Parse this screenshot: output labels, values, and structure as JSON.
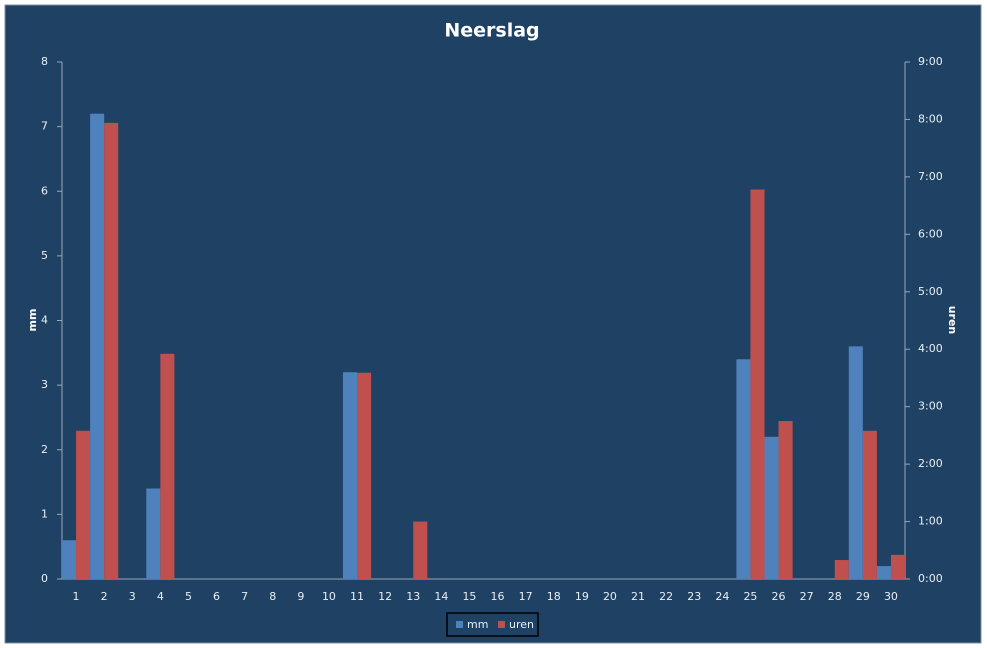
{
  "chart_data": {
    "type": "bar",
    "title": "Neerslag",
    "y_label": "mm",
    "y2_label": "uren",
    "categories": [
      "1",
      "2",
      "3",
      "4",
      "5",
      "6",
      "7",
      "8",
      "9",
      "10",
      "11",
      "12",
      "13",
      "14",
      "15",
      "16",
      "17",
      "18",
      "19",
      "20",
      "21",
      "22",
      "23",
      "24",
      "25",
      "26",
      "27",
      "28",
      "29",
      "30"
    ],
    "series": [
      {
        "name": "mm",
        "color": "#4f81bd",
        "values": [
          0.6,
          7.2,
          0,
          1.4,
          0,
          0,
          0,
          0,
          0,
          0,
          3.2,
          0,
          0,
          0,
          0,
          0,
          0,
          0,
          0,
          0,
          0,
          0,
          0,
          0,
          3.4,
          2.2,
          0,
          0,
          3.6,
          0.2
        ]
      },
      {
        "name": "uren",
        "color": "#c0504d",
        "axis": "y2",
        "values": [
          2.58,
          7.94,
          0,
          3.92,
          0,
          0,
          0,
          0,
          0,
          0,
          3.59,
          0,
          1,
          0,
          0,
          0,
          0,
          0,
          0,
          0,
          0,
          0,
          0,
          0,
          6.78,
          2.75,
          0,
          0.33,
          2.58,
          0.42
        ]
      }
    ],
    "ylim": [
      0,
      8
    ],
    "yticks": [
      0,
      1,
      2,
      3,
      4,
      5,
      6,
      7,
      8
    ],
    "y2lim": [
      0,
      9
    ],
    "y2ticks": [
      {
        "value": 0,
        "label": "0:00"
      },
      {
        "value": 1,
        "label": "1:00"
      },
      {
        "value": 2,
        "label": "2:00"
      },
      {
        "value": 3,
        "label": "3:00"
      },
      {
        "value": 4,
        "label": "4:00"
      },
      {
        "value": 5,
        "label": "5:00"
      },
      {
        "value": 6,
        "label": "6:00"
      },
      {
        "value": 7,
        "label": "7:00"
      },
      {
        "value": 8,
        "label": "8:00"
      },
      {
        "value": 9,
        "label": "9:00"
      }
    ],
    "legend": "bottom"
  }
}
